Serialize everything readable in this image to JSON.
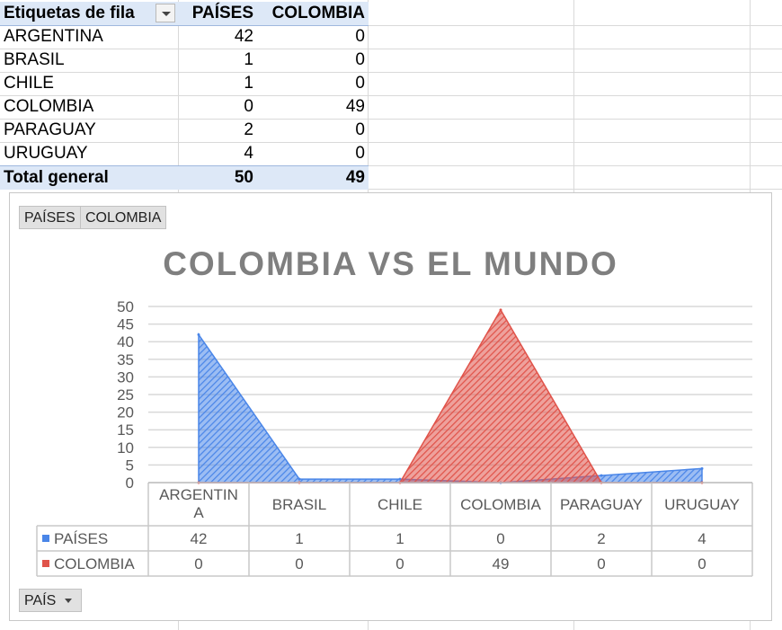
{
  "pivot": {
    "header": {
      "row_labels": "Etiquetas de fila",
      "col1": "PAÍSES",
      "col2": "COLOMBIA"
    },
    "rows": [
      {
        "label": "ARGENTINA",
        "paises": "42",
        "colombia": "0"
      },
      {
        "label": "BRASIL",
        "paises": "1",
        "colombia": "0"
      },
      {
        "label": "CHILE",
        "paises": "1",
        "colombia": "0"
      },
      {
        "label": "COLOMBIA",
        "paises": "0",
        "colombia": "49"
      },
      {
        "label": "PARAGUAY",
        "paises": "2",
        "colombia": "0"
      },
      {
        "label": "URUGUAY",
        "paises": "4",
        "colombia": "0"
      }
    ],
    "total": {
      "label": "Total general",
      "paises": "50",
      "colombia": "49"
    }
  },
  "chart_buttons": {
    "paises": "PAÍSES",
    "colombia": "COLOMBIA",
    "pais": "PAÍS"
  },
  "colors": {
    "paises": "#4a86e8",
    "colombia": "#e0534a",
    "title": "#7f7f7f"
  },
  "chart_data": {
    "type": "area",
    "title": "COLOMBIA VS EL MUNDO",
    "categories": [
      "ARGENTINA",
      "BRASIL",
      "CHILE",
      "COLOMBIA",
      "PARAGUAY",
      "URUGUAY"
    ],
    "category_display": [
      [
        "ARGENTIN",
        "A"
      ],
      [
        "BRASIL"
      ],
      [
        "CHILE"
      ],
      [
        "COLOMBIA"
      ],
      [
        "PARAGUAY"
      ],
      [
        "URUGUAY"
      ]
    ],
    "series": [
      {
        "name": "PAÍSES",
        "values": [
          42,
          1,
          1,
          0,
          2,
          4
        ]
      },
      {
        "name": "COLOMBIA",
        "values": [
          0,
          0,
          0,
          49,
          0,
          0
        ]
      }
    ],
    "ylim": [
      0,
      50
    ],
    "yticks": [
      0,
      5,
      10,
      15,
      20,
      25,
      30,
      35,
      40,
      45,
      50
    ],
    "grid": true,
    "legend": "data-table"
  }
}
